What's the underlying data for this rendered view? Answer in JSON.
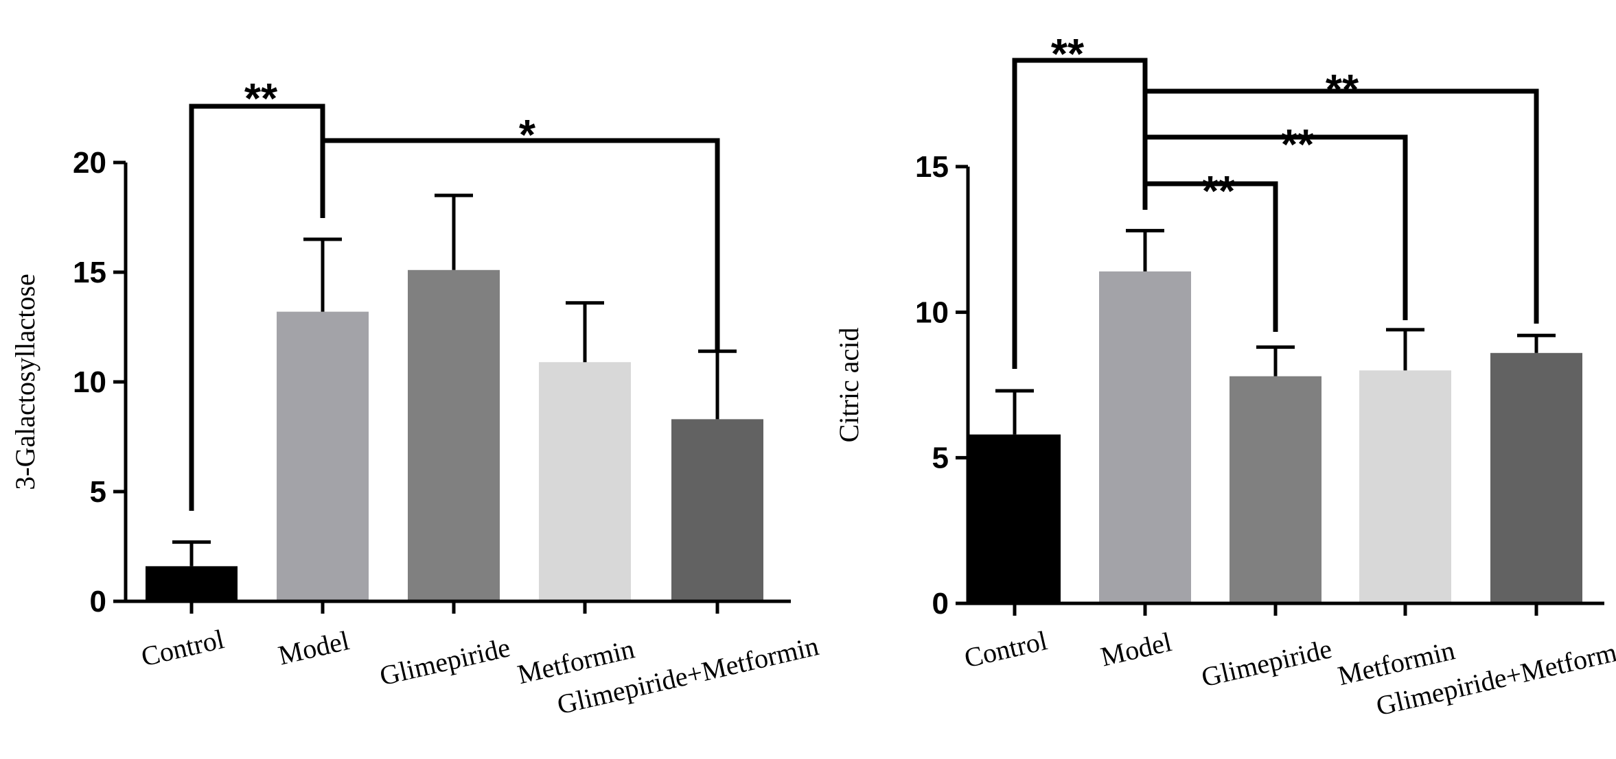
{
  "chart_data": [
    {
      "type": "bar",
      "title": "",
      "xlabel": "",
      "ylabel": "3-Galactosyllactose",
      "ylim": [
        0,
        20
      ],
      "yticks": [
        0,
        5,
        10,
        15,
        20
      ],
      "categories": [
        "Control",
        "Model",
        "Glimepiride",
        "Metformin",
        "Glimepiride+Metformin"
      ],
      "values": [
        1.6,
        13.2,
        15.1,
        10.9,
        8.3
      ],
      "errors": [
        1.1,
        3.3,
        3.4,
        2.7,
        3.1
      ],
      "colors": [
        "#000000",
        "#a3a3a8",
        "#808080",
        "#d8d8d8",
        "#626262"
      ],
      "significance": [
        {
          "from": "Control",
          "to": "Model",
          "label": "**"
        },
        {
          "from": "Model",
          "to": "Glimepiride+Metformin",
          "label": "*"
        }
      ]
    },
    {
      "type": "bar",
      "title": "",
      "xlabel": "",
      "ylabel": "Citric acid",
      "ylim": [
        0,
        15
      ],
      "yticks": [
        0,
        5,
        10,
        15
      ],
      "categories": [
        "Control",
        "Model",
        "Glimepiride",
        "Metformin",
        "Glimepiride+Metformin"
      ],
      "values": [
        5.8,
        11.4,
        7.8,
        8.0,
        8.6
      ],
      "errors": [
        1.5,
        1.4,
        1.0,
        1.4,
        0.6
      ],
      "colors": [
        "#000000",
        "#a3a3a8",
        "#808080",
        "#d8d8d8",
        "#626262"
      ],
      "significance": [
        {
          "from": "Control",
          "to": "Model",
          "label": "**"
        },
        {
          "from": "Model",
          "to": "Glimepiride",
          "label": "**"
        },
        {
          "from": "Model",
          "to": "Metformin",
          "label": "**"
        },
        {
          "from": "Model",
          "to": "Glimepiride+Metformin",
          "label": "**"
        }
      ]
    }
  ]
}
